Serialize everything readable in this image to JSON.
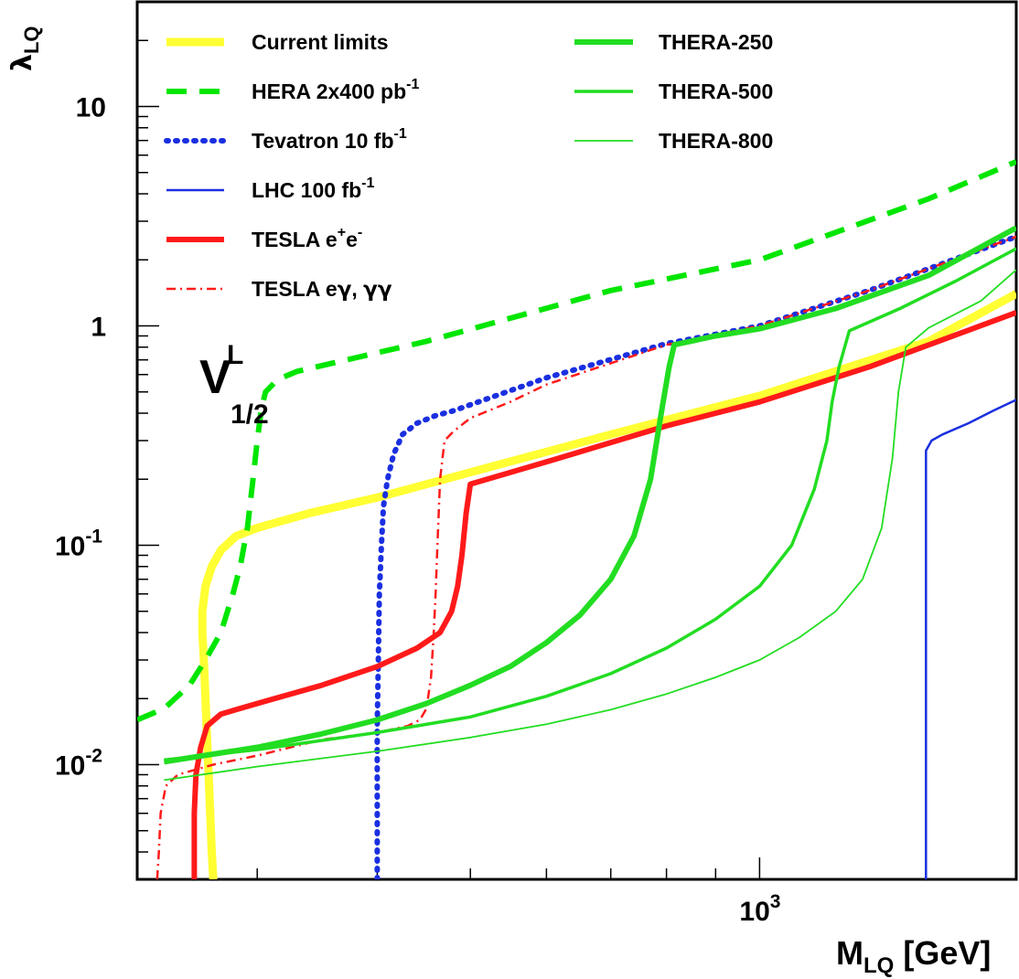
{
  "chart_data": {
    "type": "line",
    "title": "",
    "xlabel": {
      "main": "M",
      "sub": "LQ",
      "unit": "[GeV]"
    },
    "ylabel": {
      "main": "λ",
      "sub": "LQ"
    },
    "x_scale": "log",
    "y_scale": "log",
    "xlim": [
      225,
      1850
    ],
    "ylim": [
      0.003,
      30
    ],
    "x_tick_labels": [
      {
        "value": 1000,
        "base": "10",
        "exp": "3"
      }
    ],
    "y_tick_labels": [
      {
        "value": 10,
        "base": "10",
        "exp": ""
      },
      {
        "value": 1,
        "base": "1",
        "exp": ""
      },
      {
        "value": 0.1,
        "base": "10",
        "exp": "-1"
      },
      {
        "value": 0.01,
        "base": "10",
        "exp": "-2"
      }
    ],
    "annotation": {
      "main": "V",
      "sup": "L",
      "sub": "1/2"
    },
    "legend_position": "top-left",
    "legend": [
      {
        "series": 0,
        "parts": [
          {
            "t": "Current limits"
          }
        ]
      },
      {
        "series": 1,
        "parts": [
          {
            "t": "HERA  2x400 pb"
          },
          {
            "t": "-1",
            "sup": true
          }
        ]
      },
      {
        "series": 2,
        "parts": [
          {
            "t": "Tevatron  10 fb"
          },
          {
            "t": "-1",
            "sup": true
          }
        ]
      },
      {
        "series": 3,
        "parts": [
          {
            "t": "LHC  100 fb"
          },
          {
            "t": "-1",
            "sup": true
          }
        ]
      },
      {
        "series": 4,
        "parts": [
          {
            "t": "TESLA e"
          },
          {
            "t": "+",
            "sup": true
          },
          {
            "t": "e"
          },
          {
            "t": "-",
            "sup": true
          }
        ]
      },
      {
        "series": 5,
        "parts": [
          {
            "t": "TESLA  e"
          },
          {
            "t": "γ",
            "sym": true
          },
          {
            "t": ",  "
          },
          {
            "t": "γγ",
            "sym": true
          }
        ]
      },
      {
        "series": 6,
        "parts": [
          {
            "t": "THERA-250"
          }
        ]
      },
      {
        "series": 7,
        "parts": [
          {
            "t": "THERA-500"
          }
        ]
      },
      {
        "series": 8,
        "parts": [
          {
            "t": "THERA-800"
          }
        ]
      }
    ],
    "series": [
      {
        "name": "Current limits",
        "color": "#ffff33",
        "width": 9,
        "dash": "",
        "points": [
          [
            270,
            0.003
          ],
          [
            269,
            0.004
          ],
          [
            268,
            0.006
          ],
          [
            267,
            0.009
          ],
          [
            266,
            0.013
          ],
          [
            265,
            0.02
          ],
          [
            264,
            0.03
          ],
          [
            263,
            0.04
          ],
          [
            263,
            0.05
          ],
          [
            265,
            0.065
          ],
          [
            269,
            0.08
          ],
          [
            275,
            0.095
          ],
          [
            285,
            0.11
          ],
          [
            300,
            0.12
          ],
          [
            320,
            0.13
          ],
          [
            340,
            0.14
          ],
          [
            400,
            0.165
          ],
          [
            500,
            0.215
          ],
          [
            700,
            0.32
          ],
          [
            1000,
            0.48
          ],
          [
            1500,
            0.85
          ],
          [
            1850,
            1.4
          ]
        ]
      },
      {
        "name": "HERA  2x400 pb-1",
        "color": "#00e600",
        "width": 6,
        "dash": "22,14",
        "points": [
          [
            225,
            0.016
          ],
          [
            240,
            0.018
          ],
          [
            255,
            0.023
          ],
          [
            265,
            0.03
          ],
          [
            275,
            0.04
          ],
          [
            283,
            0.06
          ],
          [
            288,
            0.08
          ],
          [
            293,
            0.12
          ],
          [
            297,
            0.2
          ],
          [
            300,
            0.3
          ],
          [
            303,
            0.42
          ],
          [
            306,
            0.5
          ],
          [
            315,
            0.57
          ],
          [
            330,
            0.62
          ],
          [
            450,
            0.85
          ],
          [
            700,
            1.45
          ],
          [
            1000,
            2.0
          ],
          [
            1500,
            3.8
          ],
          [
            1850,
            5.6
          ]
        ]
      },
      {
        "name": "Tevatron  10 fb-1",
        "color": "#1a2fe0",
        "width": 6,
        "dash": "2,8",
        "points": [
          [
            400,
            0.003
          ],
          [
            400,
            0.006
          ],
          [
            400,
            0.01
          ],
          [
            400,
            0.015
          ],
          [
            401,
            0.03
          ],
          [
            402,
            0.06
          ],
          [
            404,
            0.1
          ],
          [
            406,
            0.15
          ],
          [
            410,
            0.2
          ],
          [
            416,
            0.26
          ],
          [
            425,
            0.32
          ],
          [
            440,
            0.36
          ],
          [
            460,
            0.39
          ],
          [
            480,
            0.41
          ],
          [
            600,
            0.58
          ],
          [
            800,
            0.83
          ],
          [
            1000,
            1.0
          ],
          [
            1300,
            1.45
          ],
          [
            1850,
            2.55
          ]
        ]
      },
      {
        "name": "LHC  100 fb-1",
        "color": "#1a2fe0",
        "width": 2.5,
        "dash": "",
        "points": [
          [
            1490,
            0.003
          ],
          [
            1490,
            0.01
          ],
          [
            1490,
            0.05
          ],
          [
            1490,
            0.15
          ],
          [
            1490,
            0.27
          ],
          [
            1510,
            0.3
          ],
          [
            1550,
            0.32
          ],
          [
            1650,
            0.36
          ],
          [
            1750,
            0.41
          ],
          [
            1850,
            0.46
          ]
        ]
      },
      {
        "name": "TESLA e+e-",
        "color": "#ff1a1a",
        "width": 6,
        "dash": "",
        "points": [
          [
            258,
            0.003
          ],
          [
            258,
            0.006
          ],
          [
            259,
            0.009
          ],
          [
            262,
            0.012
          ],
          [
            266,
            0.015
          ],
          [
            275,
            0.017
          ],
          [
            300,
            0.019
          ],
          [
            350,
            0.023
          ],
          [
            400,
            0.028
          ],
          [
            440,
            0.034
          ],
          [
            465,
            0.04
          ],
          [
            478,
            0.05
          ],
          [
            485,
            0.065
          ],
          [
            490,
            0.09
          ],
          [
            495,
            0.14
          ],
          [
            500,
            0.19
          ],
          [
            600,
            0.24
          ],
          [
            800,
            0.35
          ],
          [
            1000,
            0.45
          ],
          [
            1300,
            0.65
          ],
          [
            1850,
            1.15
          ]
        ]
      },
      {
        "name": "TESLA  eγ,  γγ",
        "color": "#ff1a1a",
        "width": 2.5,
        "dash": "10,5,2,5",
        "points": [
          [
            236,
            0.003
          ],
          [
            237,
            0.004
          ],
          [
            238,
            0.006
          ],
          [
            241,
            0.008
          ],
          [
            248,
            0.009
          ],
          [
            270,
            0.01
          ],
          [
            300,
            0.011
          ],
          [
            350,
            0.013
          ],
          [
            400,
            0.014
          ],
          [
            430,
            0.015
          ],
          [
            443,
            0.016
          ],
          [
            450,
            0.018
          ],
          [
            455,
            0.025
          ],
          [
            458,
            0.04
          ],
          [
            460,
            0.06
          ],
          [
            462,
            0.1
          ],
          [
            465,
            0.2
          ],
          [
            470,
            0.3
          ],
          [
            480,
            0.33
          ],
          [
            500,
            0.38
          ],
          [
            550,
            0.45
          ],
          [
            600,
            0.54
          ],
          [
            800,
            0.82
          ],
          [
            1000,
            1.0
          ],
          [
            1300,
            1.45
          ],
          [
            1850,
            2.55
          ]
        ]
      },
      {
        "name": "THERA-250",
        "color": "#22dd22",
        "width": 6,
        "dash": "",
        "points": [
          [
            240,
            0.0103
          ],
          [
            300,
            0.012
          ],
          [
            350,
            0.0138
          ],
          [
            400,
            0.016
          ],
          [
            450,
            0.019
          ],
          [
            500,
            0.023
          ],
          [
            550,
            0.028
          ],
          [
            600,
            0.036
          ],
          [
            650,
            0.048
          ],
          [
            700,
            0.07
          ],
          [
            740,
            0.11
          ],
          [
            770,
            0.2
          ],
          [
            790,
            0.4
          ],
          [
            805,
            0.65
          ],
          [
            815,
            0.82
          ],
          [
            900,
            0.9
          ],
          [
            1000,
            0.97
          ],
          [
            1200,
            1.2
          ],
          [
            1500,
            1.7
          ],
          [
            1850,
            2.8
          ]
        ]
      },
      {
        "name": "THERA-500",
        "color": "#22dd22",
        "width": 3.5,
        "dash": "",
        "points": [
          [
            240,
            0.0105
          ],
          [
            300,
            0.0117
          ],
          [
            400,
            0.014
          ],
          [
            500,
            0.0165
          ],
          [
            600,
            0.0205
          ],
          [
            700,
            0.026
          ],
          [
            800,
            0.034
          ],
          [
            900,
            0.046
          ],
          [
            1000,
            0.065
          ],
          [
            1080,
            0.1
          ],
          [
            1140,
            0.18
          ],
          [
            1175,
            0.3
          ],
          [
            1190,
            0.45
          ],
          [
            1210,
            0.65
          ],
          [
            1240,
            0.95
          ],
          [
            1400,
            1.2
          ],
          [
            1600,
            1.6
          ],
          [
            1850,
            2.25
          ]
        ]
      },
      {
        "name": "THERA-800",
        "color": "#22dd22",
        "width": 1.8,
        "dash": "",
        "points": [
          [
            240,
            0.0085
          ],
          [
            300,
            0.0098
          ],
          [
            400,
            0.0115
          ],
          [
            500,
            0.0133
          ],
          [
            600,
            0.0153
          ],
          [
            700,
            0.0178
          ],
          [
            800,
            0.021
          ],
          [
            900,
            0.025
          ],
          [
            1000,
            0.03
          ],
          [
            1100,
            0.038
          ],
          [
            1200,
            0.05
          ],
          [
            1280,
            0.07
          ],
          [
            1340,
            0.12
          ],
          [
            1375,
            0.25
          ],
          [
            1395,
            0.5
          ],
          [
            1420,
            0.8
          ],
          [
            1500,
            0.98
          ],
          [
            1700,
            1.3
          ],
          [
            1850,
            1.8
          ]
        ]
      }
    ]
  }
}
